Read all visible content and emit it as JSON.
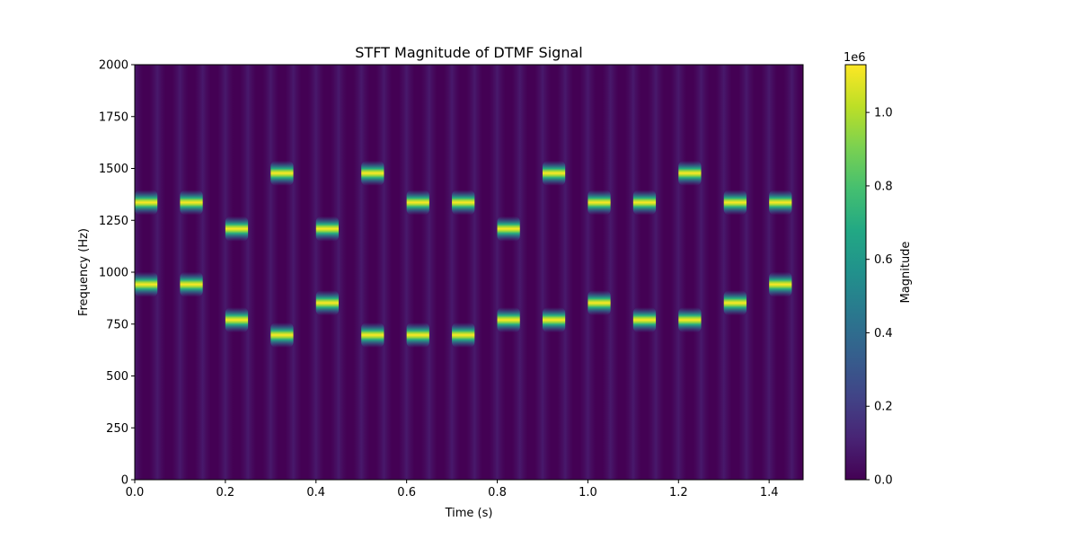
{
  "chart_data": {
    "type": "heatmap",
    "title": "STFT Magnitude of DTMF Signal",
    "xlabel": "Time (s)",
    "ylabel": "Frequency (Hz)",
    "xlim": [
      0,
      1.475
    ],
    "ylim": [
      0,
      2000
    ],
    "x_ticks": [
      "0.0",
      "0.2",
      "0.4",
      "0.6",
      "0.8",
      "1.0",
      "1.2",
      "1.4"
    ],
    "y_ticks": [
      "0",
      "250",
      "500",
      "750",
      "1000",
      "1250",
      "1500",
      "1750",
      "2000"
    ],
    "colormap": "viridis",
    "colorbar": {
      "label": "Magnitude",
      "range": [
        0,
        1130000
      ],
      "ticks": [
        "0.0",
        "0.2",
        "0.4",
        "0.6",
        "0.8",
        "1.0"
      ],
      "offset_text": "1e6"
    },
    "tones": [
      {
        "t_start": 0.0,
        "t_end": 0.05,
        "low_hz": 941,
        "high_hz": 1336
      },
      {
        "t_start": 0.1,
        "t_end": 0.15,
        "low_hz": 941,
        "high_hz": 1336
      },
      {
        "t_start": 0.2,
        "t_end": 0.25,
        "low_hz": 770,
        "high_hz": 1209
      },
      {
        "t_start": 0.3,
        "t_end": 0.35,
        "low_hz": 697,
        "high_hz": 1477
      },
      {
        "t_start": 0.4,
        "t_end": 0.45,
        "low_hz": 852,
        "high_hz": 1209
      },
      {
        "t_start": 0.5,
        "t_end": 0.55,
        "low_hz": 697,
        "high_hz": 1477
      },
      {
        "t_start": 0.6,
        "t_end": 0.65,
        "low_hz": 697,
        "high_hz": 1336
      },
      {
        "t_start": 0.7,
        "t_end": 0.75,
        "low_hz": 697,
        "high_hz": 1336
      },
      {
        "t_start": 0.8,
        "t_end": 0.85,
        "low_hz": 770,
        "high_hz": 1209
      },
      {
        "t_start": 0.9,
        "t_end": 0.95,
        "low_hz": 770,
        "high_hz": 1477
      },
      {
        "t_start": 1.0,
        "t_end": 1.05,
        "low_hz": 852,
        "high_hz": 1336
      },
      {
        "t_start": 1.1,
        "t_end": 1.15,
        "low_hz": 770,
        "high_hz": 1336
      },
      {
        "t_start": 1.2,
        "t_end": 1.25,
        "low_hz": 770,
        "high_hz": 1477
      },
      {
        "t_start": 1.3,
        "t_end": 1.35,
        "low_hz": 852,
        "high_hz": 1336
      },
      {
        "t_start": 1.4,
        "t_end": 1.45,
        "low_hz": 941,
        "high_hz": 1336
      }
    ],
    "background_color": "#440154"
  }
}
